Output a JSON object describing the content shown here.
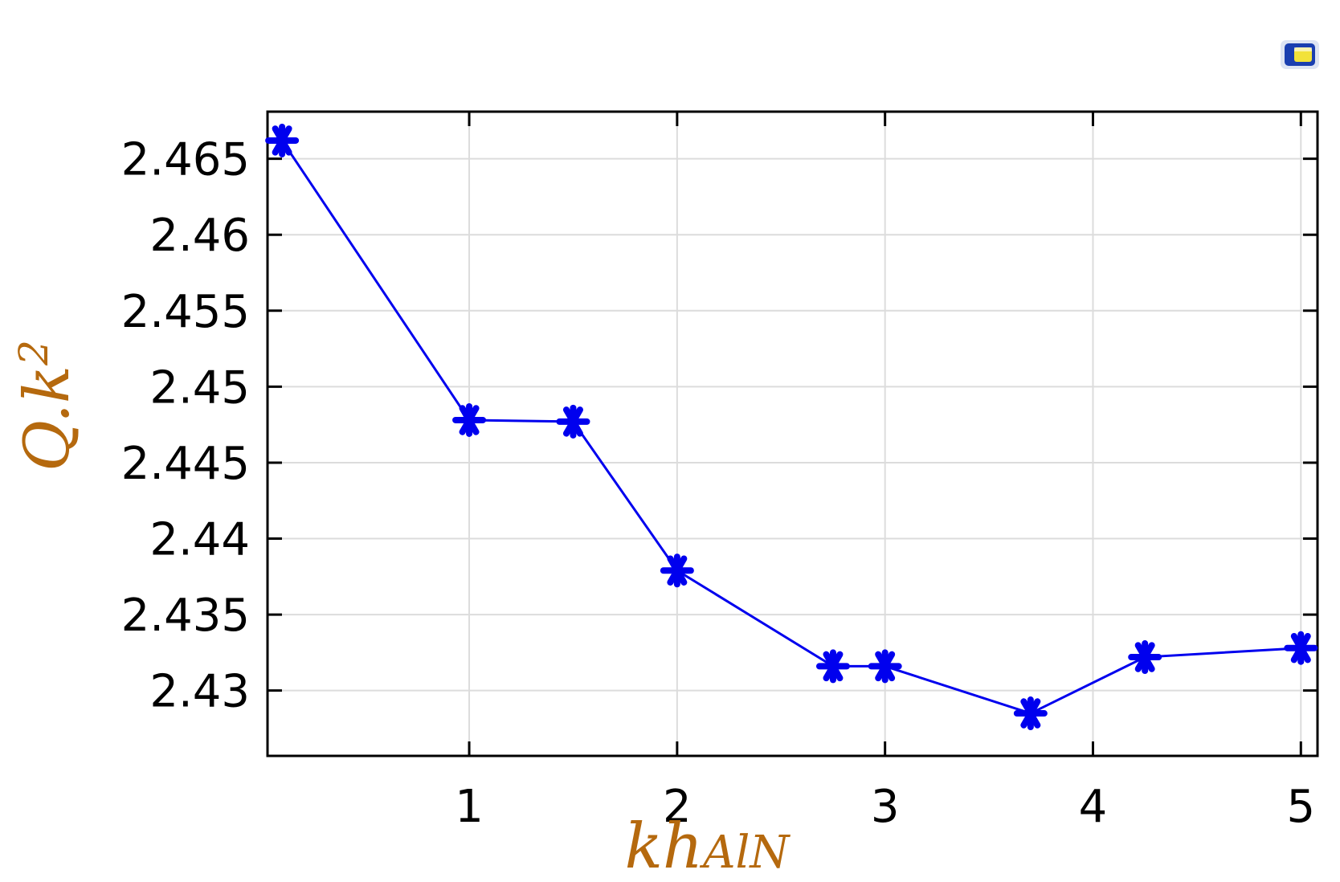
{
  "app_icon": {
    "name": "comsol-plot-icon",
    "colors": [
      "#1a3fb0",
      "#f2e23a",
      "#ffffff"
    ]
  },
  "chart_data": {
    "type": "line",
    "xlabel": {
      "main": "kh",
      "sub": "AlN"
    },
    "ylabel": {
      "main": "Q.k",
      "sup": "2"
    },
    "x": [
      0.1,
      1.0,
      1.5,
      2.0,
      2.75,
      3.0,
      3.7,
      4.25,
      5.0
    ],
    "series": [
      {
        "values": [
          2.4662,
          2.4478,
          2.4477,
          2.4379,
          2.4316,
          2.4316,
          2.4285,
          2.4322,
          2.4328
        ]
      }
    ],
    "xlim": [
      0.03,
      5.08
    ],
    "ylim": [
      2.4257,
      2.4681
    ],
    "xticks": [
      1,
      2,
      3,
      4,
      5
    ],
    "xtick_labels": [
      "1",
      "2",
      "3",
      "4",
      "5"
    ],
    "yticks": [
      2.43,
      2.435,
      2.44,
      2.445,
      2.45,
      2.455,
      2.46,
      2.465
    ],
    "ytick_labels": [
      "2.43",
      "2.435",
      "2.44",
      "2.445",
      "2.45",
      "2.455",
      "2.46",
      "2.465"
    ],
    "grid": true,
    "line_color": "#0000ee",
    "axis_label_color": "#b5690e",
    "marker": "asterisk"
  }
}
